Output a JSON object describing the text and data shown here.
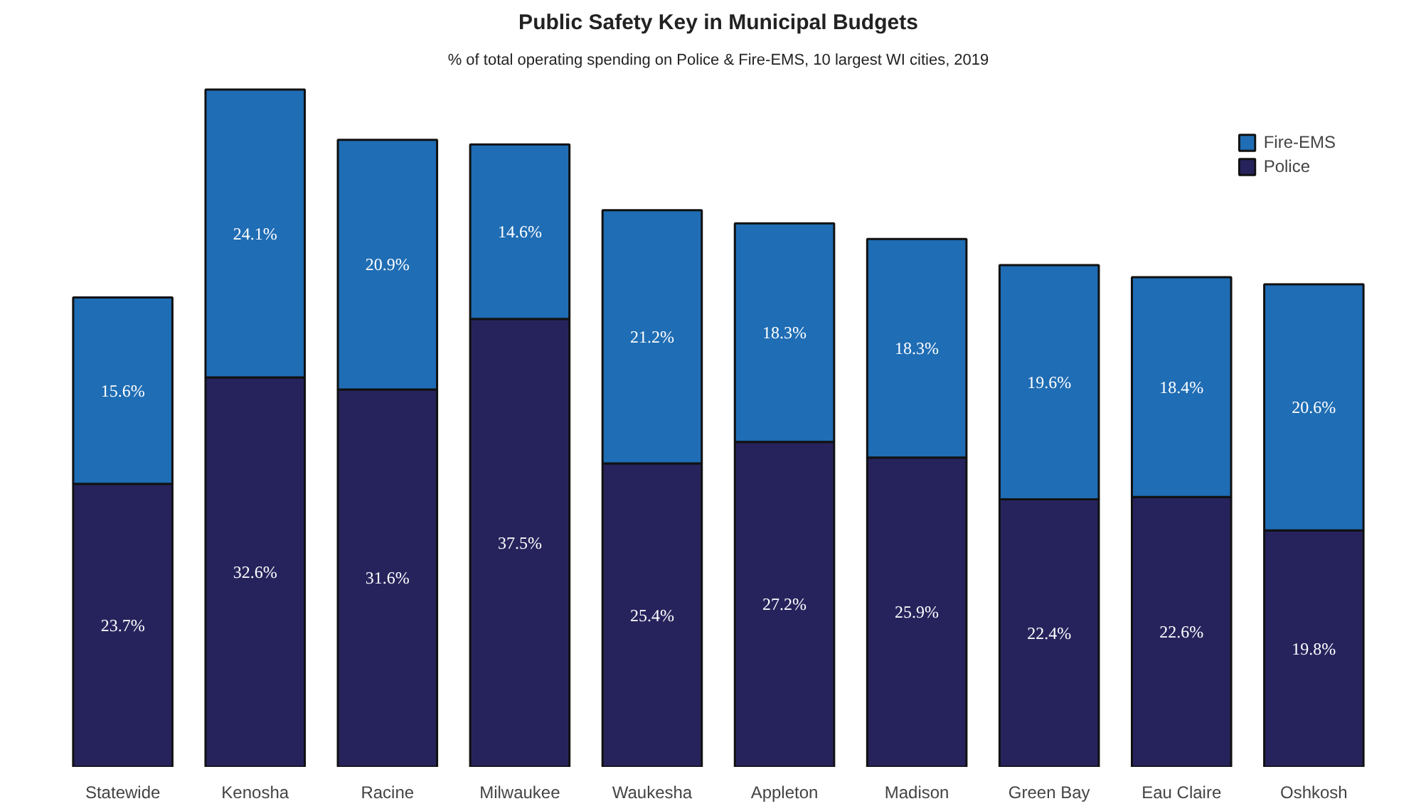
{
  "chart_data": {
    "type": "bar",
    "stacked": true,
    "title": "Public Safety Key in Municipal Budgets",
    "subtitle": "% of total operating spending on Police & Fire-EMS, 10 largest WI cities, 2019",
    "categories": [
      "Statewide",
      "Kenosha",
      "Racine",
      "Milwaukee",
      "Waukesha",
      "Appleton",
      "Madison",
      "Green Bay",
      "Eau Claire",
      "Oshkosh"
    ],
    "series": [
      {
        "name": "Police",
        "color": "#26235c",
        "values": [
          23.7,
          32.6,
          31.6,
          37.5,
          25.4,
          27.2,
          25.9,
          22.4,
          22.6,
          19.8
        ],
        "value_labels": [
          "23.7%",
          "32.6%",
          "31.6%",
          "37.5%",
          "25.4%",
          "27.2%",
          "25.9%",
          "22.4%",
          "22.6%",
          "19.8%"
        ]
      },
      {
        "name": "Fire-EMS",
        "color": "#1f6db4",
        "values": [
          15.6,
          24.1,
          20.9,
          14.6,
          21.2,
          18.3,
          18.3,
          19.6,
          18.4,
          20.6
        ],
        "value_labels": [
          "15.6%",
          "24.1%",
          "20.9%",
          "14.6%",
          "21.2%",
          "18.3%",
          "18.3%",
          "19.6%",
          "18.4%",
          "20.6%"
        ]
      }
    ],
    "legend": "top right",
    "grid": false
  }
}
